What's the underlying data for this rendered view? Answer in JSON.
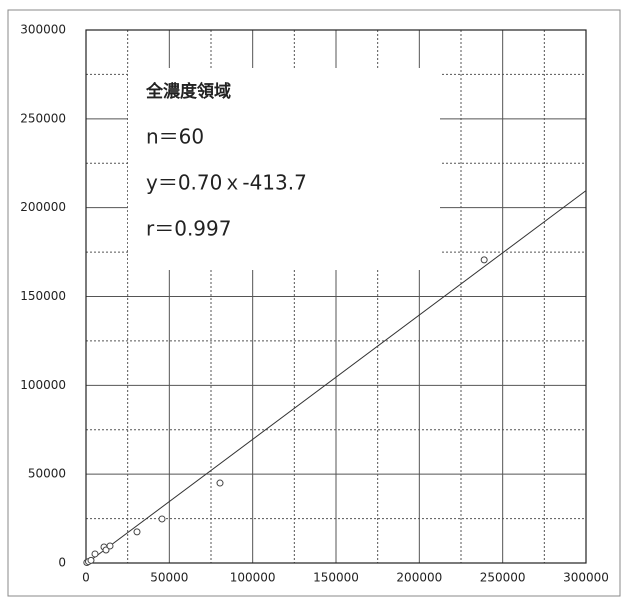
{
  "chart_data": {
    "type": "scatter",
    "annotations": [
      "全濃度領域",
      "n＝60",
      "y＝0.70ｘ-413.7",
      "r＝0.997"
    ],
    "fit": {
      "slope": 0.7,
      "intercept": -413.7
    },
    "series": [
      {
        "color": "#444444",
        "x": [
          500,
          1500,
          3000,
          5400,
          10800,
          12000,
          14400,
          30600,
          45600,
          80400,
          238900
        ],
        "values": [
          300,
          800,
          1500,
          5100,
          9000,
          7300,
          9600,
          17500,
          24800,
          45000,
          170600
        ]
      }
    ],
    "xlim": [
      0,
      300000
    ],
    "xticks": [
      0,
      50000,
      100000,
      150000,
      200000,
      250000,
      300000
    ],
    "ylim": [
      0,
      300000
    ],
    "yticks": [
      0,
      50000,
      100000,
      150000,
      200000,
      250000,
      300000
    ],
    "grid": true
  }
}
